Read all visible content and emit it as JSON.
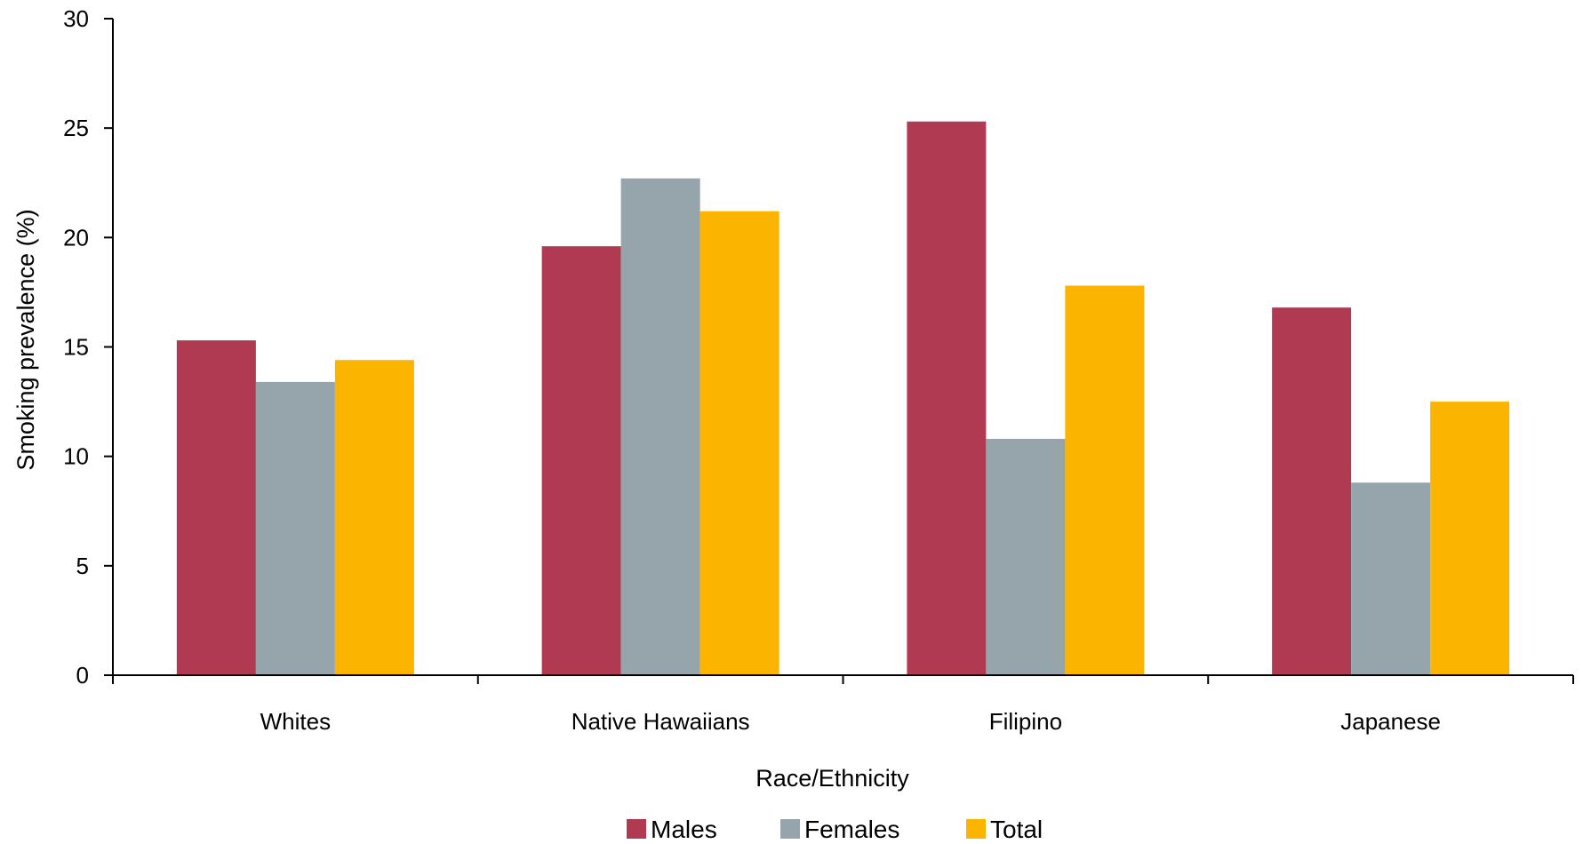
{
  "chart_data": {
    "type": "bar",
    "title": "",
    "xlabel": "Race/Ethnicity",
    "ylabel": "Smoking prevalence (%)",
    "ylim": [
      0,
      30
    ],
    "yticks": [
      "0",
      "5",
      "10",
      "15",
      "20",
      "25",
      "30"
    ],
    "categories": [
      "Whites",
      "Native Hawaiians",
      "Filipino",
      "Japanese"
    ],
    "series": [
      {
        "name": "Males",
        "color": "#B03A52",
        "values": [
          15.3,
          19.6,
          25.3,
          16.8
        ]
      },
      {
        "name": "Females",
        "color": "#95A5AB",
        "values": [
          13.4,
          22.7,
          10.8,
          8.8
        ]
      },
      {
        "name": "Total",
        "color": "#FBB400",
        "values": [
          14.4,
          21.2,
          17.8,
          12.5
        ]
      }
    ],
    "grid": false,
    "legend": "bottom-center"
  }
}
